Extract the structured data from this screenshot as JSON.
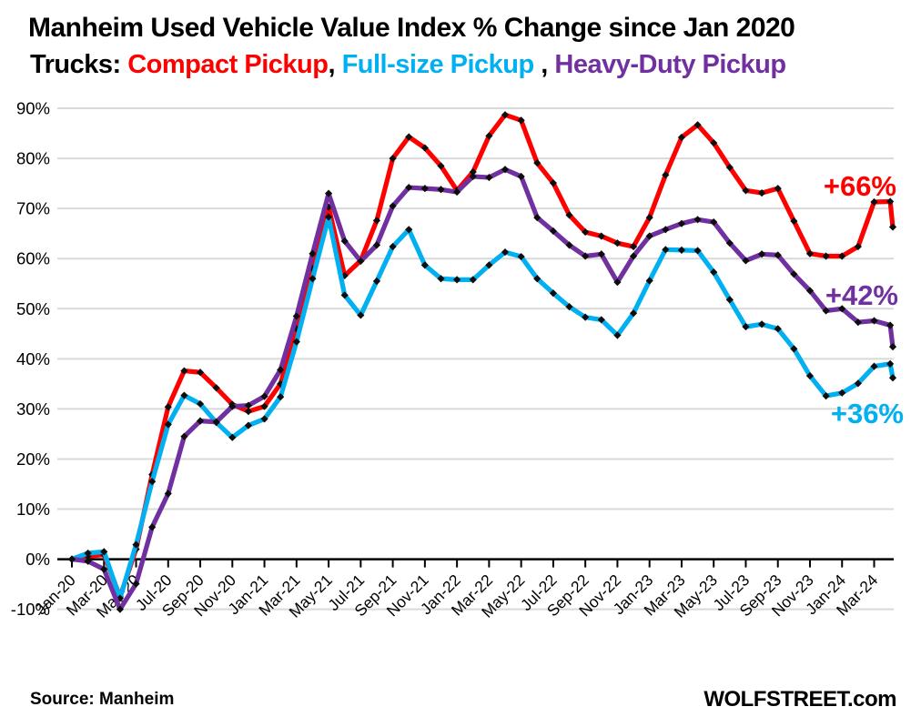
{
  "title": {
    "line1": "Manheim Used Vehicle Value Index % Change since Jan 2020",
    "prefix": "Trucks: ",
    "series1": "Compact Pickup",
    "sep1": ", ",
    "series2": "Full-size Pickup",
    "sep2": " , ",
    "series3": "Heavy-Duty Pickup"
  },
  "footer": {
    "source": "Source: Manheim",
    "site": "WOLFSTREET.com"
  },
  "colors": {
    "compact": "#FF0000",
    "fullsize": "#00B0F0",
    "heavyduty": "#7030A0",
    "gridline": "#D9D9D9",
    "axis": "#000000",
    "marker": "#0D0D0D",
    "tick_text": "#000000"
  },
  "chart_data": {
    "type": "line",
    "title": "Manheim Used Vehicle Value Index % Change since Jan 2020",
    "subtitle": "Trucks: Compact Pickup, Full-size Pickup, Heavy-Duty Pickup",
    "ylabel": "",
    "xlabel": "",
    "ylim": [
      -10,
      90
    ],
    "ytick_step": 10,
    "ytick_format": "percent",
    "grid": "horizontal",
    "legend": "colored words in subtitle",
    "x": [
      "Jan-20",
      "Feb-20",
      "Mar-20",
      "Apr-20",
      "May-20",
      "Jun-20",
      "Jul-20",
      "Aug-20",
      "Sep-20",
      "Oct-20",
      "Nov-20",
      "Dec-20",
      "Jan-21",
      "Feb-21",
      "Mar-21",
      "Apr-21",
      "May-21",
      "Jun-21",
      "Jul-21",
      "Aug-21",
      "Sep-21",
      "Oct-21",
      "Nov-21",
      "Dec-21",
      "Jan-22",
      "Feb-22",
      "Mar-22",
      "Apr-22",
      "May-22",
      "Jun-22",
      "Jul-22",
      "Aug-22",
      "Sep-22",
      "Oct-22",
      "Nov-22",
      "Dec-22",
      "Jan-23",
      "Feb-23",
      "Mar-23",
      "Apr-23",
      "May-23",
      "Jun-23",
      "Jul-23",
      "Aug-23",
      "Sep-23",
      "Oct-23",
      "Nov-23",
      "Dec-23",
      "Jan-24",
      "Feb-24",
      "Mar-24",
      "Apr-24",
      "May-24"
    ],
    "xtick_labels_shown": [
      "Jan-20",
      "Mar-20",
      "May-20",
      "Jul-20",
      "Sep-20",
      "Nov-20",
      "Jan-21",
      "Mar-21",
      "May-21",
      "Jul-21",
      "Sep-21",
      "Nov-21",
      "Jan-22",
      "Mar-22",
      "May-22",
      "Jul-22",
      "Sep-22",
      "Nov-22",
      "Jan-23",
      "Mar-23",
      "May-23",
      "Jul-23",
      "Sep-23",
      "Nov-23",
      "Jan-24",
      "Mar-24"
    ],
    "series": [
      {
        "name": "Compact Pickup",
        "color": "#FF0000",
        "values": [
          0,
          0.6,
          0.9,
          -7.5,
          2.0,
          16.9,
          30.4,
          37.6,
          37.3,
          34.2,
          30.9,
          29.5,
          30.5,
          35.0,
          46.0,
          58.0,
          70.3,
          56.6,
          59.6,
          67.6,
          80.0,
          84.3,
          82.1,
          78.5,
          73.6,
          77.3,
          84.5,
          88.7,
          87.6,
          79.1,
          75.1,
          68.7,
          65.3,
          64.5,
          63.1,
          62.4,
          68.2,
          76.7,
          84.2,
          86.7,
          83.1,
          78.2,
          73.6,
          73.1,
          74.0,
          67.5,
          61.0,
          60.5,
          60.5,
          62.4,
          71.3,
          71.4,
          66.3
        ]
      },
      {
        "name": "Full-size Pickup",
        "color": "#00B0F0",
        "values": [
          0,
          1.2,
          1.5,
          -7.8,
          2.9,
          15.5,
          26.9,
          32.7,
          31.0,
          27.3,
          24.3,
          26.7,
          28.0,
          32.4,
          43.4,
          56.0,
          68.3,
          52.7,
          48.7,
          55.5,
          62.4,
          65.8,
          58.7,
          56.0,
          55.8,
          55.8,
          58.7,
          61.3,
          60.4,
          56.0,
          53.1,
          50.4,
          48.3,
          47.8,
          44.7,
          49.1,
          55.6,
          61.8,
          61.7,
          61.6,
          57.3,
          51.8,
          46.4,
          46.9,
          46.0,
          42.0,
          36.6,
          32.6,
          33.2,
          35.1,
          38.5,
          39.0,
          36.2
        ]
      },
      {
        "name": "Heavy-Duty Pickup",
        "color": "#7030A0",
        "values": [
          0,
          -0.4,
          -2.0,
          -10.0,
          -4.9,
          6.4,
          13.1,
          24.5,
          27.6,
          27.4,
          30.5,
          30.7,
          32.5,
          37.8,
          48.5,
          61.0,
          73.0,
          63.5,
          59.5,
          62.7,
          70.5,
          74.2,
          74.0,
          73.8,
          73.3,
          76.4,
          76.2,
          77.8,
          76.4,
          68.2,
          65.5,
          62.7,
          60.5,
          60.9,
          55.3,
          60.5,
          64.5,
          65.8,
          67.0,
          67.8,
          67.3,
          63.1,
          59.6,
          60.9,
          60.7,
          56.9,
          53.6,
          49.6,
          50.0,
          47.3,
          47.6,
          46.7,
          42.4
        ]
      }
    ],
    "annotations": [
      {
        "text": "+66%",
        "color": "#FF0000",
        "x": 985,
        "y": 215,
        "align": "end"
      },
      {
        "text": "+42%",
        "color": "#7030A0",
        "x": 987,
        "y": 335,
        "align": "end"
      },
      {
        "text": "+36%",
        "color": "#00B0F0",
        "x": 993,
        "y": 465,
        "align": "end"
      }
    ]
  }
}
